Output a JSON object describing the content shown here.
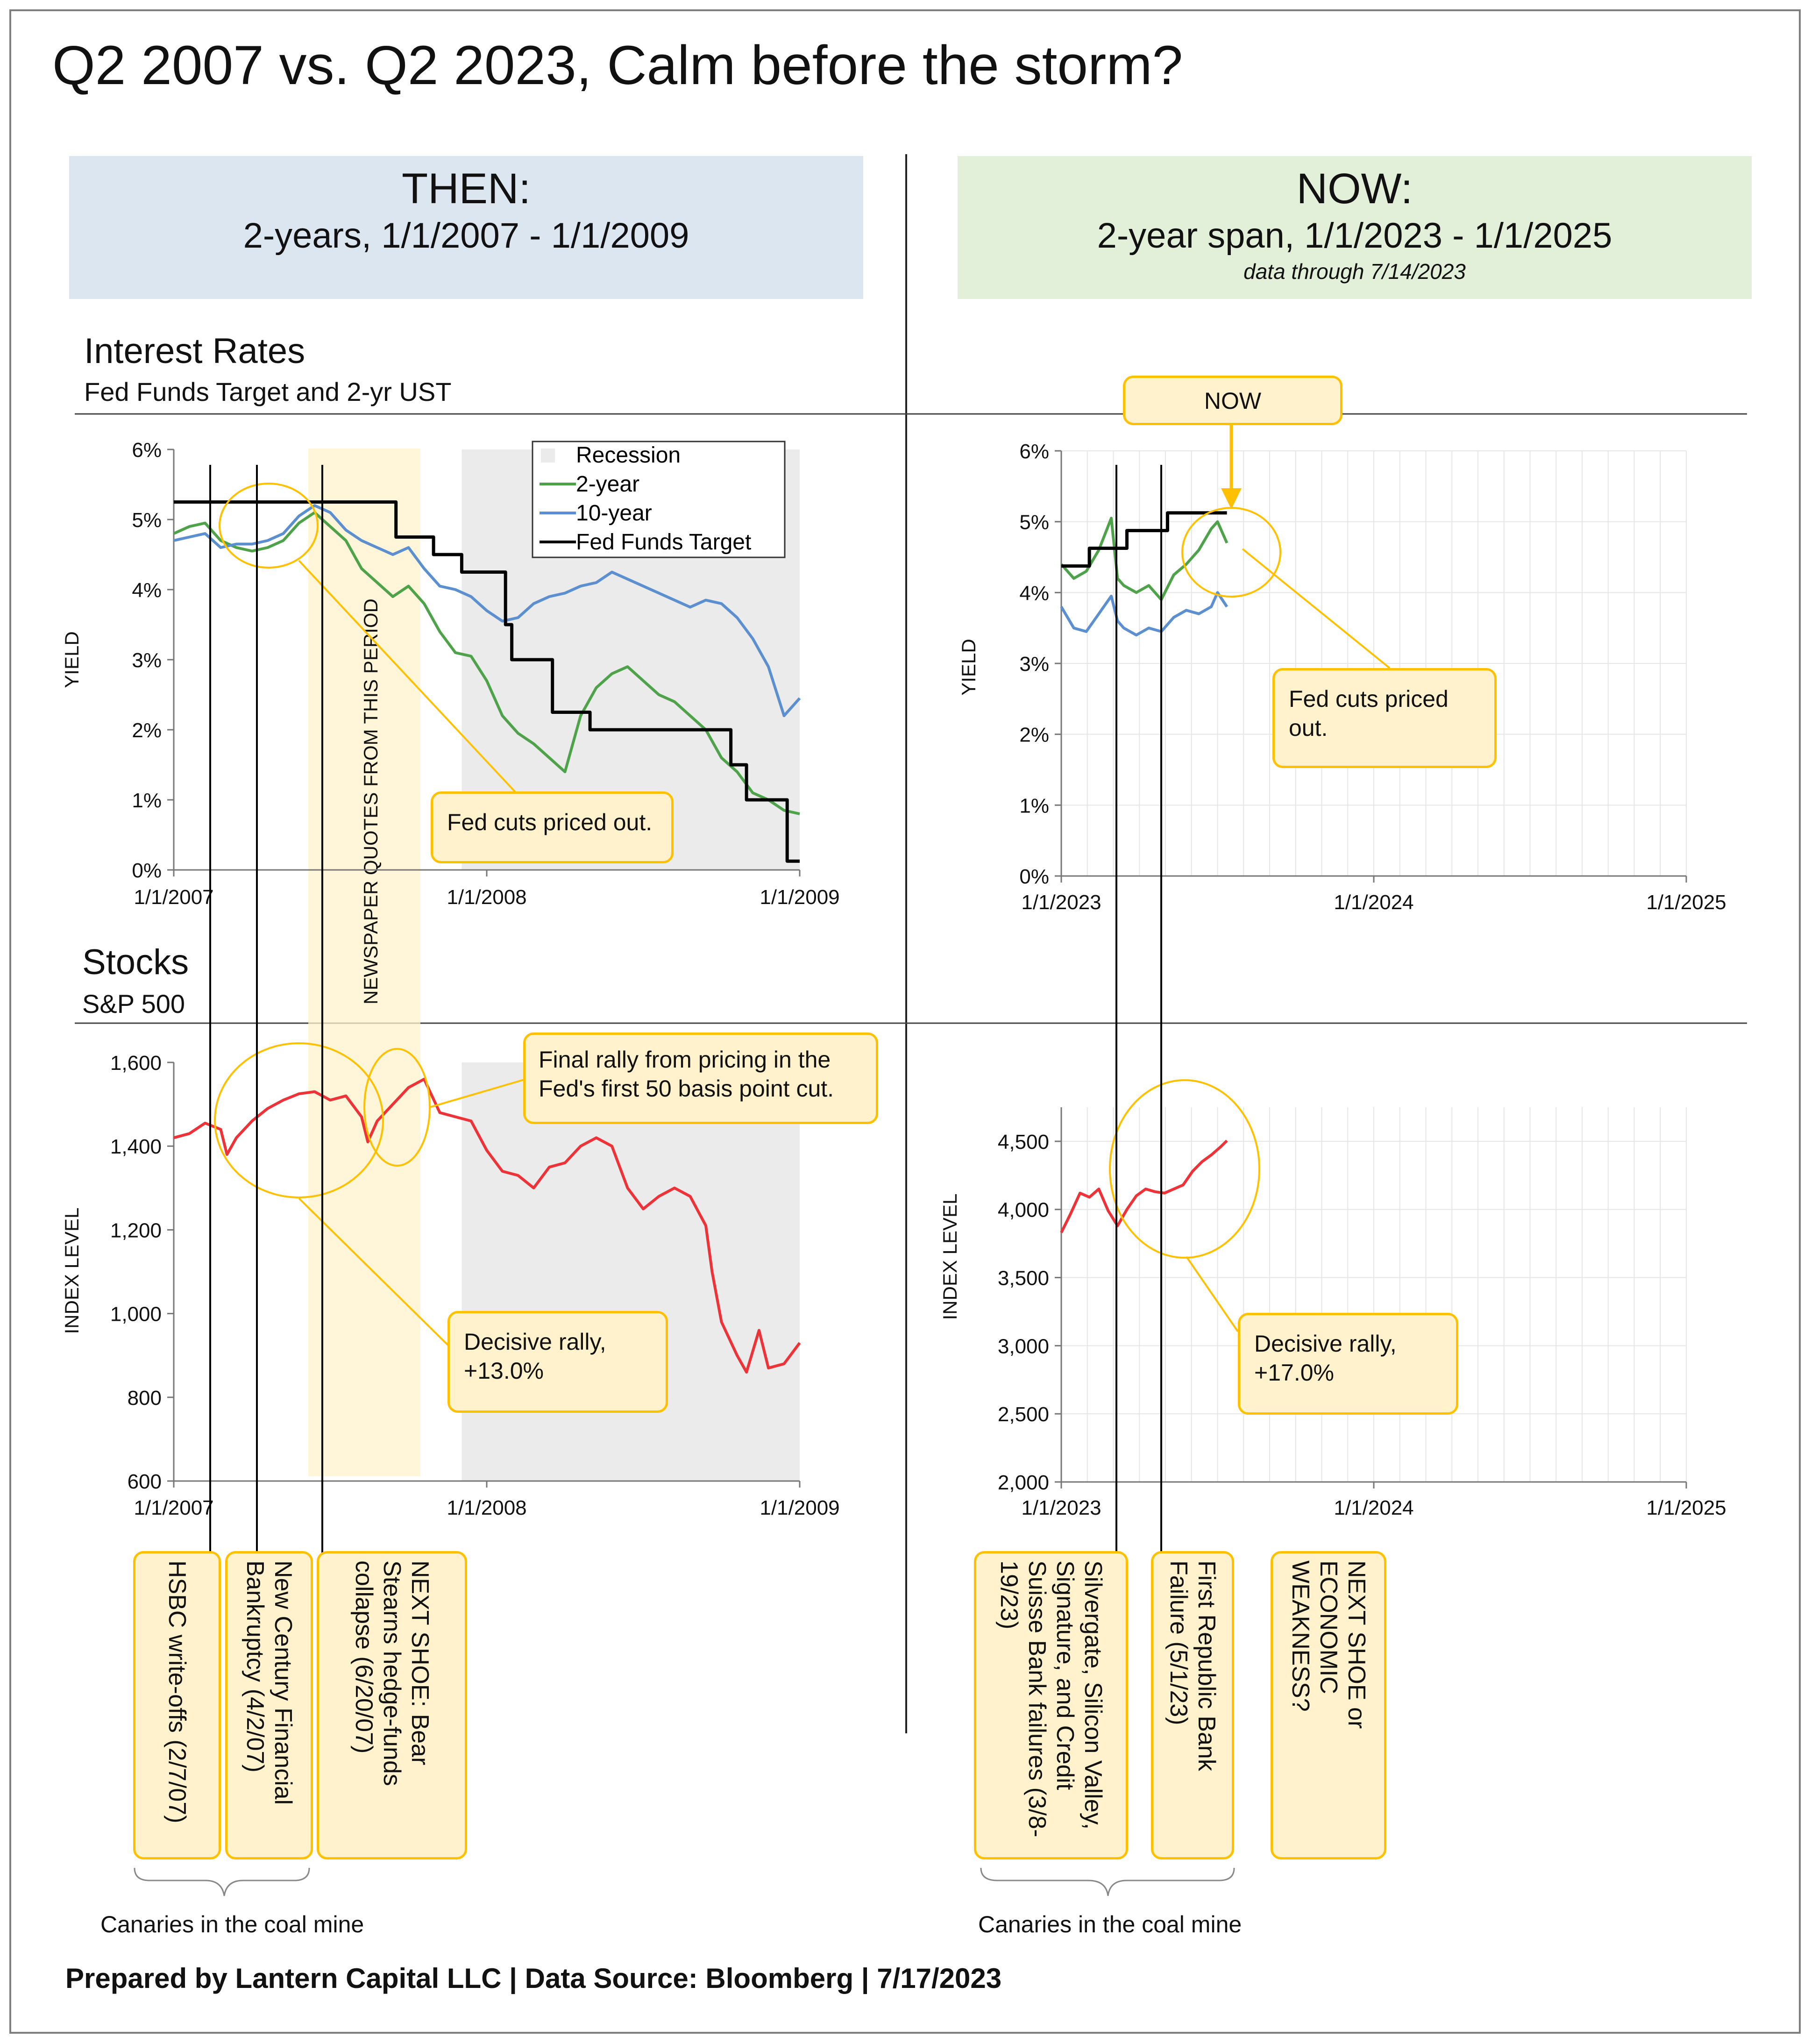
{
  "title": "Q2 2007 vs. Q2 2023, Calm before the storm?",
  "then_header": {
    "line1": "THEN:",
    "line2": "2-years, 1/1/2007 - 1/1/2009"
  },
  "now_header": {
    "line1": "NOW:",
    "line2": "2-year span, 1/1/2023 - 1/1/2025",
    "line3": "data through 7/14/2023"
  },
  "rates_section": {
    "title": "Interest Rates",
    "subtitle": "Fed Funds Target and 2-yr UST"
  },
  "stocks_section": {
    "title": "Stocks",
    "subtitle": "S&P 500"
  },
  "colors": {
    "two_year": "#4ea24a",
    "ten_year": "#5b8fd0",
    "fed": "#000000",
    "sp500": "#ee3338",
    "recession": "#ebebeb",
    "callout_fill": "#fff2cc",
    "callout_border": "#ffc000",
    "then_bg": "#dce6f1",
    "now_bg": "#e2efd9"
  },
  "newspaper_label": "NEWSPAPER QUOTES FROM THIS PERIOD",
  "now_tag": "NOW",
  "callouts": {
    "then_rates": "Fed cuts priced out.",
    "now_rates": "Fed cuts priced out.",
    "then_stocks_line1": "Decisive rally,",
    "then_stocks_line2": "+13.0%",
    "now_stocks_line1": "Decisive rally,",
    "now_stocks_line2": "+17.0%",
    "final_rally_line1": "Final rally from pricing in the",
    "final_rally_line2": "Fed's first 50 basis point cut."
  },
  "events_then": [
    "HSBC write-offs (2/7/07)",
    "New Century Financial Bankruptcy (4/2/07)",
    "NEXT SHOE: Bear Stearns hedge-funds collapse (6/20/07)"
  ],
  "events_now": [
    "Silvergate, Silicon Valley, Signature, and Credit Suisse Bank failures (3/8-19/23)",
    "First Republic Bank Failure (5/1/23)",
    "NEXT SHOE or ECONOMIC WEAKNESS?"
  ],
  "canaries_label": "Canaries in the coal mine",
  "footer": "Prepared by Lantern Capital LLC | Data Source: Bloomberg | 7/17/2023",
  "chart_data": [
    {
      "type": "line",
      "panel": "then-rates",
      "ylabel": "YIELD",
      "ylim": [
        0,
        6
      ],
      "y_ticks": [
        "0%",
        "1%",
        "2%",
        "3%",
        "4%",
        "5%",
        "6%"
      ],
      "x_ticks": [
        "1/1/2007",
        "1/1/2008",
        "1/1/2009"
      ],
      "xlim": [
        2007.0,
        2009.0
      ],
      "legend": [
        "Recession",
        "2-year",
        "10-year",
        "Fed Funds Target"
      ],
      "legend_position": "top-right",
      "recession": [
        2007.92,
        2009.0
      ],
      "series": [
        {
          "name": "2-year",
          "x": [
            2007.0,
            2007.05,
            2007.1,
            2007.15,
            2007.2,
            2007.25,
            2007.3,
            2007.35,
            2007.4,
            2007.45,
            2007.5,
            2007.55,
            2007.6,
            2007.65,
            2007.7,
            2007.75,
            2007.8,
            2007.85,
            2007.9,
            2007.95,
            2008.0,
            2008.05,
            2008.1,
            2008.15,
            2008.2,
            2008.25,
            2008.3,
            2008.35,
            2008.4,
            2008.45,
            2008.5,
            2008.55,
            2008.6,
            2008.65,
            2008.7,
            2008.75,
            2008.8,
            2008.85,
            2008.9,
            2008.95,
            2009.0
          ],
          "y": [
            4.8,
            4.9,
            4.95,
            4.7,
            4.6,
            4.55,
            4.6,
            4.7,
            4.95,
            5.1,
            4.9,
            4.7,
            4.3,
            4.1,
            3.9,
            4.05,
            3.8,
            3.4,
            3.1,
            3.05,
            2.7,
            2.2,
            1.95,
            1.8,
            1.6,
            1.4,
            2.2,
            2.6,
            2.8,
            2.9,
            2.7,
            2.5,
            2.4,
            2.2,
            2.0,
            1.6,
            1.4,
            1.1,
            1.0,
            0.85,
            0.8
          ]
        },
        {
          "name": "10-year",
          "x": [
            2007.0,
            2007.05,
            2007.1,
            2007.15,
            2007.2,
            2007.25,
            2007.3,
            2007.35,
            2007.4,
            2007.45,
            2007.5,
            2007.55,
            2007.6,
            2007.65,
            2007.7,
            2007.75,
            2007.8,
            2007.85,
            2007.9,
            2007.95,
            2008.0,
            2008.05,
            2008.1,
            2008.15,
            2008.2,
            2008.25,
            2008.3,
            2008.35,
            2008.4,
            2008.45,
            2008.5,
            2008.55,
            2008.6,
            2008.65,
            2008.7,
            2008.75,
            2008.8,
            2008.85,
            2008.9,
            2008.95,
            2009.0
          ],
          "y": [
            4.7,
            4.75,
            4.8,
            4.6,
            4.65,
            4.65,
            4.7,
            4.8,
            5.05,
            5.2,
            5.1,
            4.85,
            4.7,
            4.6,
            4.5,
            4.6,
            4.3,
            4.05,
            4.0,
            3.9,
            3.7,
            3.55,
            3.6,
            3.8,
            3.9,
            3.95,
            4.05,
            4.1,
            4.25,
            4.15,
            4.05,
            3.95,
            3.85,
            3.75,
            3.85,
            3.8,
            3.6,
            3.3,
            2.9,
            2.2,
            2.45
          ]
        },
        {
          "name": "Fed Funds Target",
          "step": true,
          "x": [
            2007.0,
            2007.71,
            2007.71,
            2007.83,
            2007.83,
            2007.92,
            2007.92,
            2008.06,
            2008.06,
            2008.08,
            2008.08,
            2008.21,
            2008.21,
            2008.33,
            2008.33,
            2008.78,
            2008.78,
            2008.83,
            2008.83,
            2008.96,
            2008.96,
            2009.0
          ],
          "y": [
            5.25,
            5.25,
            4.75,
            4.75,
            4.5,
            4.5,
            4.25,
            4.25,
            3.5,
            3.5,
            3.0,
            3.0,
            2.25,
            2.25,
            2.0,
            2.0,
            1.5,
            1.5,
            1.0,
            1.0,
            0.125,
            0.125
          ]
        }
      ]
    },
    {
      "type": "line",
      "panel": "now-rates",
      "ylabel": "YIELD",
      "ylim": [
        0,
        6
      ],
      "y_ticks": [
        "0%",
        "1%",
        "2%",
        "3%",
        "4%",
        "5%",
        "6%"
      ],
      "x_ticks": [
        "1/1/2023",
        "1/1/2024",
        "1/1/2025"
      ],
      "xlim": [
        2023.0,
        2025.0
      ],
      "series": [
        {
          "name": "2-year",
          "x": [
            2023.0,
            2023.04,
            2023.08,
            2023.12,
            2023.16,
            2023.18,
            2023.2,
            2023.24,
            2023.28,
            2023.32,
            2023.36,
            2023.4,
            2023.44,
            2023.48,
            2023.5,
            2023.53
          ],
          "y": [
            4.4,
            4.2,
            4.3,
            4.6,
            5.05,
            4.2,
            4.1,
            4.0,
            4.1,
            3.9,
            4.25,
            4.4,
            4.6,
            4.9,
            5.0,
            4.7
          ]
        },
        {
          "name": "10-year",
          "x": [
            2023.0,
            2023.04,
            2023.08,
            2023.12,
            2023.16,
            2023.18,
            2023.2,
            2023.24,
            2023.28,
            2023.32,
            2023.36,
            2023.4,
            2023.44,
            2023.48,
            2023.5,
            2023.53
          ],
          "y": [
            3.8,
            3.5,
            3.45,
            3.7,
            3.95,
            3.6,
            3.5,
            3.4,
            3.5,
            3.45,
            3.65,
            3.75,
            3.7,
            3.8,
            4.0,
            3.8
          ]
        },
        {
          "name": "Fed Funds Target",
          "step": true,
          "x": [
            2023.0,
            2023.09,
            2023.09,
            2023.21,
            2023.21,
            2023.34,
            2023.34,
            2023.53
          ],
          "y": [
            4.375,
            4.375,
            4.625,
            4.625,
            4.875,
            4.875,
            5.125,
            5.125
          ]
        }
      ]
    },
    {
      "type": "line",
      "panel": "then-stocks",
      "ylabel": "INDEX LEVEL",
      "ylim": [
        600,
        1600
      ],
      "y_ticks": [
        "600",
        "800",
        "1,000",
        "1,200",
        "1,400",
        "1,600"
      ],
      "x_ticks": [
        "1/1/2007",
        "1/1/2008",
        "1/1/2009"
      ],
      "xlim": [
        2007.0,
        2009.0
      ],
      "recession": [
        2007.92,
        2009.0
      ],
      "series": [
        {
          "name": "S&P 500",
          "x": [
            2007.0,
            2007.05,
            2007.1,
            2007.15,
            2007.17,
            2007.2,
            2007.25,
            2007.3,
            2007.35,
            2007.4,
            2007.45,
            2007.5,
            2007.55,
            2007.6,
            2007.62,
            2007.65,
            2007.7,
            2007.75,
            2007.8,
            2007.85,
            2007.9,
            2007.95,
            2008.0,
            2008.05,
            2008.1,
            2008.15,
            2008.2,
            2008.25,
            2008.3,
            2008.35,
            2008.4,
            2008.45,
            2008.5,
            2008.55,
            2008.6,
            2008.65,
            2008.7,
            2008.72,
            2008.75,
            2008.8,
            2008.83,
            2008.87,
            2008.9,
            2008.95,
            2009.0
          ],
          "y": [
            1420,
            1430,
            1455,
            1440,
            1380,
            1420,
            1460,
            1490,
            1510,
            1525,
            1530,
            1510,
            1520,
            1470,
            1410,
            1460,
            1500,
            1540,
            1560,
            1480,
            1470,
            1460,
            1390,
            1340,
            1330,
            1300,
            1350,
            1360,
            1400,
            1420,
            1400,
            1300,
            1250,
            1280,
            1300,
            1280,
            1210,
            1100,
            980,
            900,
            860,
            960,
            870,
            880,
            930
          ]
        }
      ]
    },
    {
      "type": "line",
      "panel": "now-stocks",
      "ylabel": "INDEX LEVEL",
      "ylim": [
        2000,
        4750
      ],
      "y_ticks": [
        "2,000",
        "2,500",
        "3,000",
        "3,500",
        "4,000",
        "4,500"
      ],
      "x_ticks": [
        "1/1/2023",
        "1/1/2024",
        "1/1/2025"
      ],
      "xlim": [
        2023.0,
        2025.0
      ],
      "series": [
        {
          "name": "S&P 500",
          "x": [
            2023.0,
            2023.03,
            2023.06,
            2023.09,
            2023.12,
            2023.15,
            2023.18,
            2023.21,
            2023.24,
            2023.27,
            2023.3,
            2023.33,
            2023.36,
            2023.39,
            2023.42,
            2023.45,
            2023.48,
            2023.51,
            2023.53
          ],
          "y": [
            3830,
            3970,
            4120,
            4090,
            4150,
            3990,
            3880,
            4000,
            4100,
            4150,
            4130,
            4120,
            4150,
            4180,
            4280,
            4350,
            4400,
            4460,
            4505
          ]
        }
      ]
    }
  ]
}
